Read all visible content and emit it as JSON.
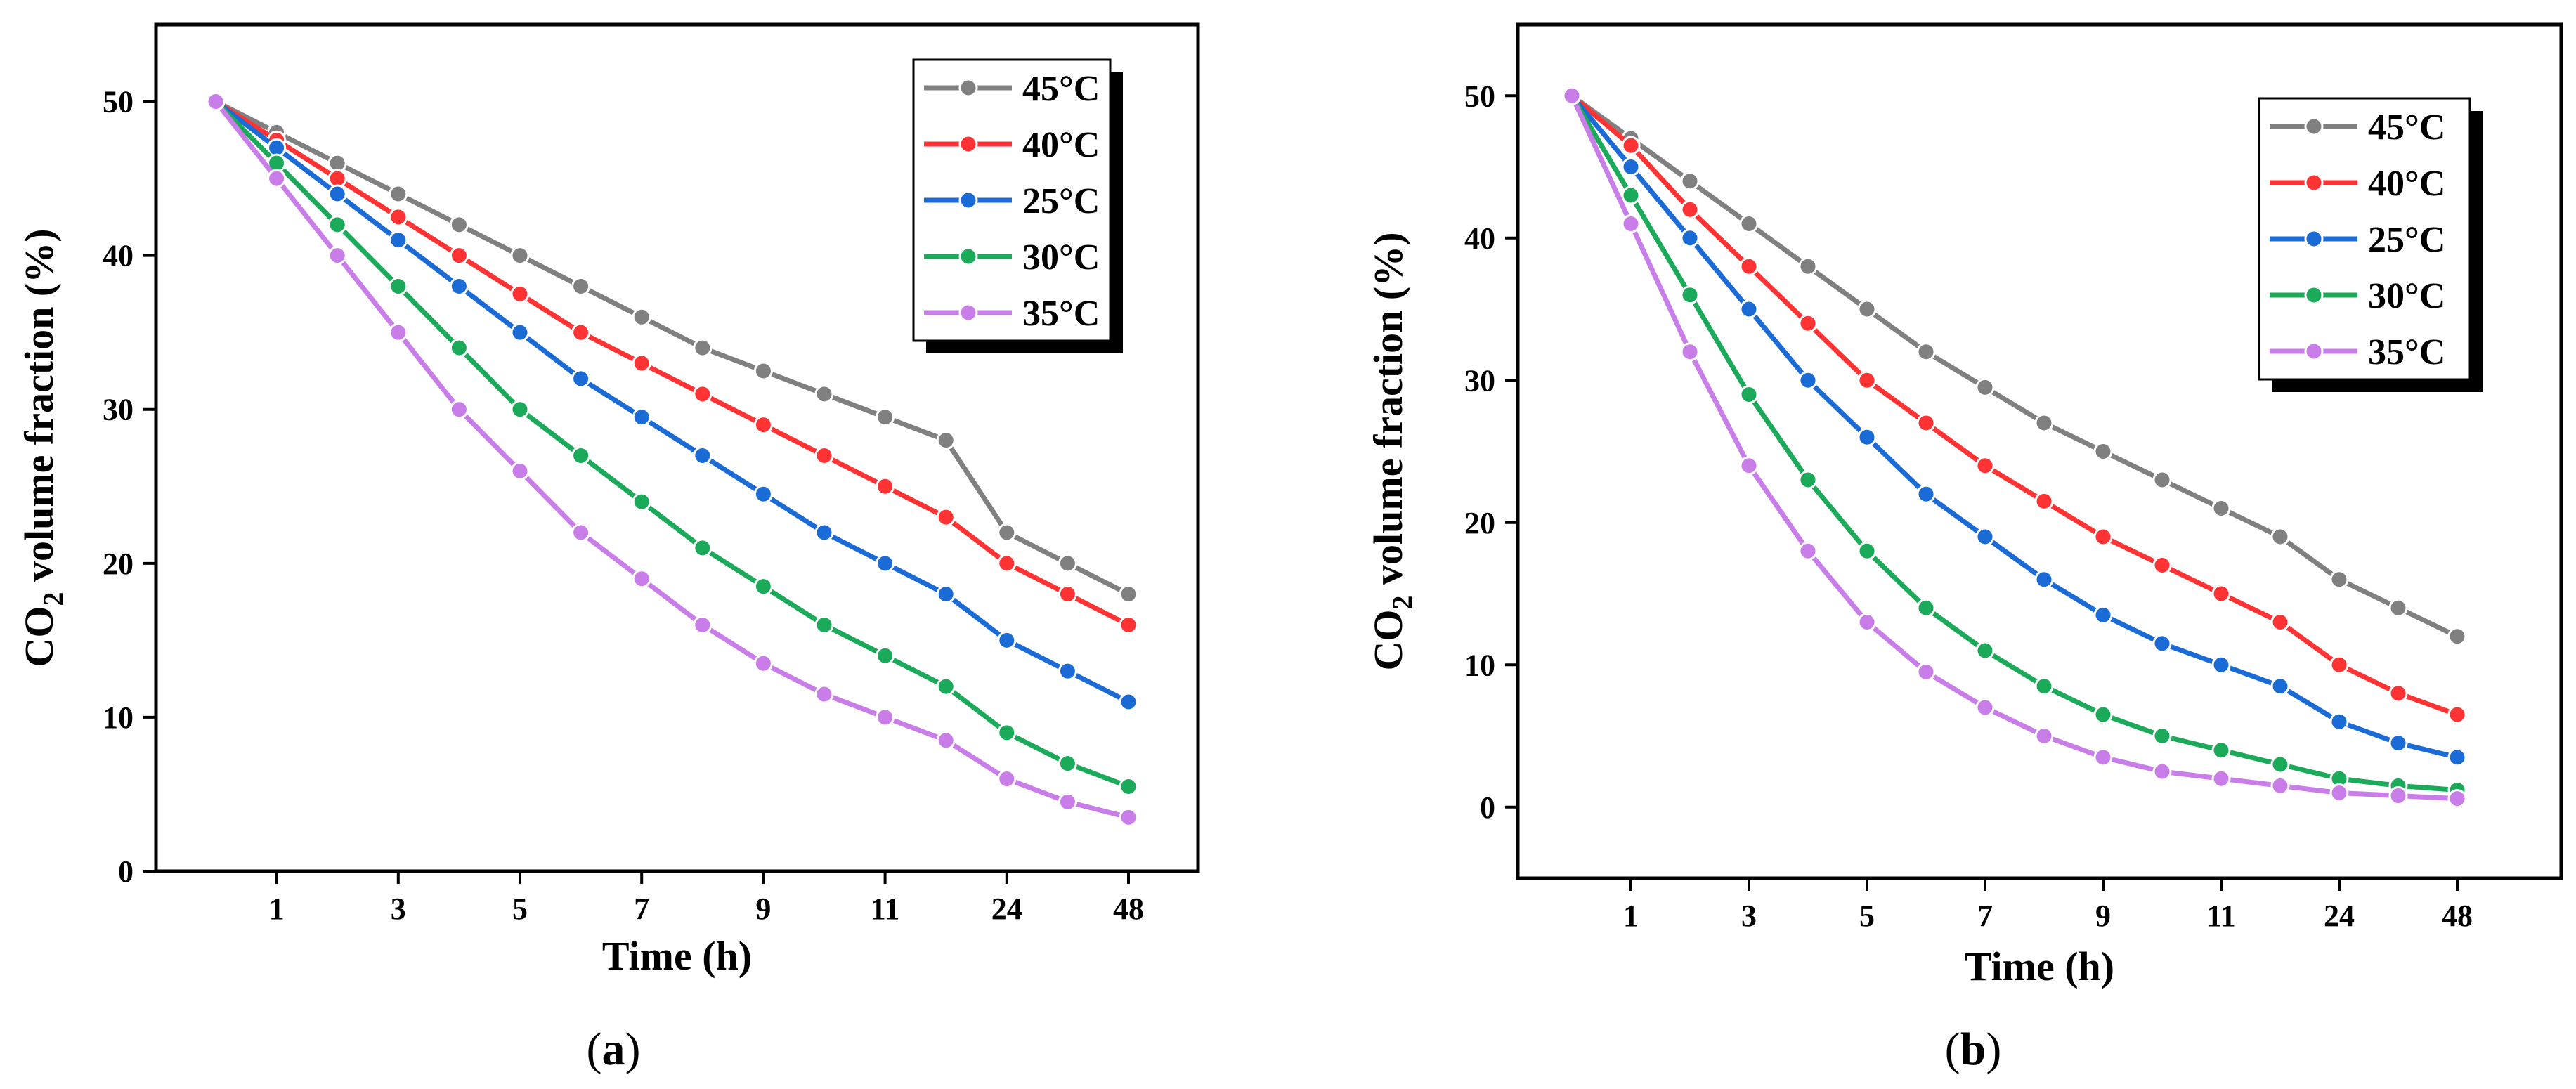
{
  "chart_data": [
    {
      "type": "line",
      "panel_label": "a",
      "xlabel": "Time (h)",
      "ylabel": "CO2 volume fraction (%)",
      "ylim": [
        0,
        55
      ],
      "yticks": [
        0,
        10,
        20,
        30,
        40,
        50
      ],
      "x_tick_labels": [
        "1",
        "3",
        "5",
        "7",
        "9",
        "11",
        "24",
        "48"
      ],
      "x": [
        "0",
        "1",
        "2",
        "3",
        "4",
        "5",
        "6",
        "7",
        "8",
        "9",
        "10",
        "11",
        "12",
        "24",
        "36",
        "48"
      ],
      "legend_position": "top-right",
      "grid": false,
      "series": [
        {
          "name": "45°C",
          "color": "#808080",
          "values": [
            50,
            48,
            46,
            44,
            42,
            40,
            38,
            36,
            34,
            32.5,
            31,
            29.5,
            28,
            22,
            20,
            18
          ]
        },
        {
          "name": "40°C",
          "color": "#ff3333",
          "values": [
            50,
            47.5,
            45,
            42.5,
            40,
            37.5,
            35,
            33,
            31,
            29,
            27,
            25,
            23,
            20,
            18,
            16
          ]
        },
        {
          "name": "25°C",
          "color": "#1a6bd6",
          "values": [
            50,
            47,
            44,
            41,
            38,
            35,
            32,
            29.5,
            27,
            24.5,
            22,
            20,
            18,
            15,
            13,
            11
          ]
        },
        {
          "name": "30°C",
          "color": "#1ba95a",
          "values": [
            50,
            46,
            42,
            38,
            34,
            30,
            27,
            24,
            21,
            18.5,
            16,
            14,
            12,
            9,
            7,
            5.5
          ]
        },
        {
          "name": "35°C",
          "color": "#c87de8",
          "values": [
            50,
            45,
            40,
            35,
            30,
            26,
            22,
            19,
            16,
            13.5,
            11.5,
            10,
            8.5,
            6,
            4.5,
            3.5
          ]
        }
      ]
    },
    {
      "type": "line",
      "panel_label": "b",
      "xlabel": "Time (h)",
      "ylabel": "CO2 volume fraction (%)",
      "ylim": [
        -5,
        55
      ],
      "yticks": [
        0,
        10,
        20,
        30,
        40,
        50
      ],
      "x_tick_labels": [
        "1",
        "3",
        "5",
        "7",
        "9",
        "11",
        "24",
        "48"
      ],
      "x": [
        "0",
        "1",
        "2",
        "3",
        "4",
        "5",
        "6",
        "7",
        "8",
        "9",
        "10",
        "11",
        "12",
        "24",
        "36",
        "48"
      ],
      "legend_position": "top-right",
      "grid": false,
      "series": [
        {
          "name": "45°C",
          "color": "#808080",
          "values": [
            50,
            47,
            44,
            41,
            38,
            35,
            32,
            29.5,
            27,
            25,
            23,
            21,
            19,
            16,
            14,
            12
          ]
        },
        {
          "name": "40°C",
          "color": "#ff3333",
          "values": [
            50,
            46.5,
            42,
            38,
            34,
            30,
            27,
            24,
            21.5,
            19,
            17,
            15,
            13,
            10,
            8,
            6.5
          ]
        },
        {
          "name": "25°C",
          "color": "#1a6bd6",
          "values": [
            50,
            45,
            40,
            35,
            30,
            26,
            22,
            19,
            16,
            13.5,
            11.5,
            10,
            8.5,
            6,
            4.5,
            3.5
          ]
        },
        {
          "name": "30°C",
          "color": "#1ba95a",
          "values": [
            50,
            43,
            36,
            29,
            23,
            18,
            14,
            11,
            8.5,
            6.5,
            5,
            4,
            3,
            2,
            1.5,
            1.2
          ]
        },
        {
          "name": "35°C",
          "color": "#c87de8",
          "values": [
            50,
            41,
            32,
            24,
            18,
            13,
            9.5,
            7,
            5,
            3.5,
            2.5,
            2,
            1.5,
            1,
            0.8,
            0.6
          ]
        }
      ]
    }
  ]
}
